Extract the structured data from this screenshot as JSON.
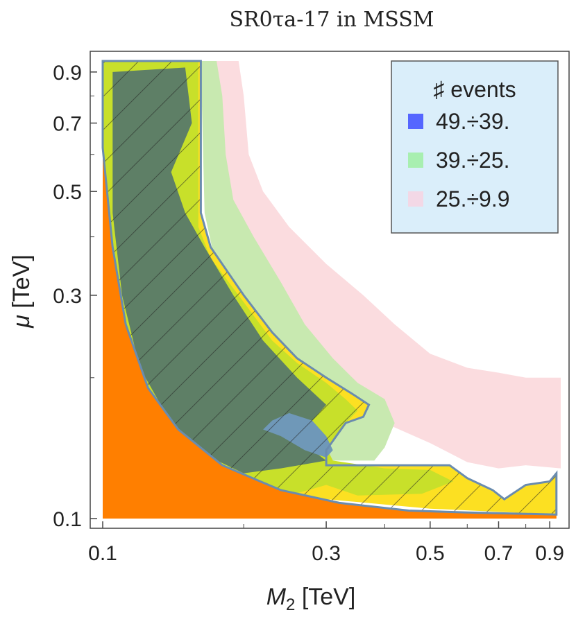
{
  "chart_data": {
    "type": "contour",
    "title": "SR0τa-17 in MSSM",
    "xlabel": {
      "symbol": "M",
      "sub": "2",
      "unit": " [TeV]"
    },
    "ylabel": {
      "symbol": "μ",
      "unit": " [TeV]"
    },
    "x_scale": "log",
    "y_scale": "log",
    "xlim": [
      0.1,
      0.95
    ],
    "ylim": [
      0.1,
      0.95
    ],
    "x_ticks": [
      {
        "value": 0.1,
        "label": "0.1"
      },
      {
        "value": 0.3,
        "label": "0.3"
      },
      {
        "value": 0.5,
        "label": "0.5"
      },
      {
        "value": 0.7,
        "label": "0.7"
      },
      {
        "value": 0.9,
        "label": "0.9"
      }
    ],
    "y_ticks": [
      {
        "value": 0.1,
        "label": "0.1"
      },
      {
        "value": 0.3,
        "label": "0.3"
      },
      {
        "value": 0.5,
        "label": "0.5"
      },
      {
        "value": 0.7,
        "label": "0.7"
      },
      {
        "value": 0.9,
        "label": "0.9"
      }
    ],
    "legend": {
      "title": "♯ events",
      "position": "top-right",
      "entries": [
        {
          "label": "49.÷39.",
          "color": "#5566ff"
        },
        {
          "label": "39.÷25.",
          "color": "#a8efb0"
        },
        {
          "label": "25.÷9.9",
          "color": "#f3d8e6"
        }
      ]
    },
    "colors": {
      "pink_band": "#fbdcdf",
      "light_green_band": "#c8e9b0",
      "yellow_band": "#fce022",
      "lime_band": "#c8e02a",
      "dark_region": "#5e7f66",
      "blue_region": "#6f98b8",
      "excluded_region": "#ff7f00",
      "contour_line": "#6a8caf"
    },
    "regions": {
      "pink": [
        [
          0.162,
          0.95
        ],
        [
          0.195,
          0.95
        ],
        [
          0.2,
          0.8
        ],
        [
          0.205,
          0.6
        ],
        [
          0.22,
          0.5
        ],
        [
          0.25,
          0.42
        ],
        [
          0.3,
          0.35
        ],
        [
          0.36,
          0.3
        ],
        [
          0.42,
          0.26
        ],
        [
          0.5,
          0.225
        ],
        [
          0.6,
          0.21
        ],
        [
          0.7,
          0.205
        ],
        [
          0.8,
          0.2
        ],
        [
          0.95,
          0.2
        ],
        [
          0.95,
          0.128
        ],
        [
          0.8,
          0.13
        ],
        [
          0.7,
          0.128
        ],
        [
          0.6,
          0.132
        ],
        [
          0.5,
          0.145
        ],
        [
          0.4,
          0.16
        ],
        [
          0.3,
          0.17
        ],
        [
          0.25,
          0.18
        ],
        [
          0.2,
          0.25
        ],
        [
          0.18,
          0.35
        ],
        [
          0.165,
          0.55
        ]
      ],
      "light_green": [
        [
          0.162,
          0.95
        ],
        [
          0.175,
          0.95
        ],
        [
          0.18,
          0.8
        ],
        [
          0.183,
          0.6
        ],
        [
          0.19,
          0.48
        ],
        [
          0.21,
          0.4
        ],
        [
          0.24,
          0.32
        ],
        [
          0.27,
          0.26
        ],
        [
          0.31,
          0.22
        ],
        [
          0.35,
          0.195
        ],
        [
          0.4,
          0.18
        ],
        [
          0.42,
          0.16
        ],
        [
          0.4,
          0.142
        ],
        [
          0.38,
          0.133
        ],
        [
          0.3,
          0.133
        ],
        [
          0.25,
          0.14
        ],
        [
          0.22,
          0.17
        ],
        [
          0.2,
          0.22
        ],
        [
          0.18,
          0.3
        ],
        [
          0.165,
          0.45
        ]
      ],
      "yellow": [
        [
          0.1,
          0.95
        ],
        [
          0.162,
          0.95
        ],
        [
          0.162,
          0.45
        ],
        [
          0.17,
          0.38
        ],
        [
          0.2,
          0.3
        ],
        [
          0.23,
          0.25
        ],
        [
          0.26,
          0.22
        ],
        [
          0.3,
          0.2
        ],
        [
          0.34,
          0.185
        ],
        [
          0.37,
          0.175
        ],
        [
          0.36,
          0.165
        ],
        [
          0.33,
          0.16
        ],
        [
          0.3,
          0.14
        ],
        [
          0.3,
          0.13
        ],
        [
          0.48,
          0.13
        ],
        [
          0.55,
          0.13
        ],
        [
          0.6,
          0.122
        ],
        [
          0.68,
          0.115
        ],
        [
          0.72,
          0.11
        ],
        [
          0.8,
          0.118
        ],
        [
          0.9,
          0.12
        ],
        [
          0.93,
          0.125
        ],
        [
          0.93,
          0.102
        ],
        [
          0.5,
          0.105
        ],
        [
          0.3,
          0.11
        ],
        [
          0.2,
          0.118
        ],
        [
          0.15,
          0.14
        ],
        [
          0.12,
          0.19
        ],
        [
          0.105,
          0.35
        ],
        [
          0.1,
          0.55
        ]
      ],
      "lime": [
        [
          0.1,
          0.95
        ],
        [
          0.16,
          0.95
        ],
        [
          0.16,
          0.42
        ],
        [
          0.17,
          0.36
        ],
        [
          0.2,
          0.29
        ],
        [
          0.23,
          0.24
        ],
        [
          0.26,
          0.215
        ],
        [
          0.3,
          0.195
        ],
        [
          0.33,
          0.18
        ],
        [
          0.35,
          0.17
        ],
        [
          0.33,
          0.16
        ],
        [
          0.3,
          0.142
        ],
        [
          0.31,
          0.133
        ],
        [
          0.4,
          0.128
        ],
        [
          0.5,
          0.127
        ],
        [
          0.56,
          0.12
        ],
        [
          0.48,
          0.113
        ],
        [
          0.35,
          0.112
        ],
        [
          0.3,
          0.118
        ],
        [
          0.25,
          0.112
        ],
        [
          0.2,
          0.117
        ],
        [
          0.15,
          0.138
        ],
        [
          0.12,
          0.19
        ],
        [
          0.105,
          0.35
        ],
        [
          0.1,
          0.6
        ]
      ],
      "dark": [
        [
          0.105,
          0.9
        ],
        [
          0.15,
          0.92
        ],
        [
          0.155,
          0.7
        ],
        [
          0.14,
          0.55
        ],
        [
          0.15,
          0.45
        ],
        [
          0.165,
          0.38
        ],
        [
          0.19,
          0.3
        ],
        [
          0.22,
          0.24
        ],
        [
          0.26,
          0.2
        ],
        [
          0.3,
          0.175
        ],
        [
          0.28,
          0.162
        ],
        [
          0.26,
          0.15
        ],
        [
          0.28,
          0.14
        ],
        [
          0.3,
          0.133
        ],
        [
          0.24,
          0.128
        ],
        [
          0.2,
          0.125
        ],
        [
          0.17,
          0.135
        ],
        [
          0.14,
          0.16
        ],
        [
          0.12,
          0.21
        ],
        [
          0.11,
          0.3
        ],
        [
          0.105,
          0.45
        ]
      ],
      "blue_patch": [
        [
          0.23,
          0.162
        ],
        [
          0.25,
          0.168
        ],
        [
          0.28,
          0.162
        ],
        [
          0.3,
          0.15
        ],
        [
          0.31,
          0.14
        ],
        [
          0.3,
          0.135
        ],
        [
          0.27,
          0.14
        ],
        [
          0.24,
          0.15
        ],
        [
          0.22,
          0.155
        ]
      ],
      "excluded_orange": [
        [
          0.1,
          0.1
        ],
        [
          0.1,
          0.62
        ],
        [
          0.105,
          0.38
        ],
        [
          0.112,
          0.26
        ],
        [
          0.125,
          0.19
        ],
        [
          0.145,
          0.155
        ],
        [
          0.18,
          0.13
        ],
        [
          0.24,
          0.115
        ],
        [
          0.32,
          0.108
        ],
        [
          0.45,
          0.104
        ],
        [
          0.6,
          0.103
        ],
        [
          0.93,
          0.102
        ],
        [
          0.93,
          0.1
        ]
      ],
      "contour_outline": [
        [
          0.1,
          0.62
        ],
        [
          0.1,
          0.95
        ],
        [
          0.162,
          0.95
        ],
        [
          0.162,
          0.45
        ],
        [
          0.17,
          0.38
        ],
        [
          0.2,
          0.3
        ],
        [
          0.23,
          0.25
        ],
        [
          0.26,
          0.22
        ],
        [
          0.3,
          0.2
        ],
        [
          0.34,
          0.185
        ],
        [
          0.37,
          0.175
        ],
        [
          0.36,
          0.165
        ],
        [
          0.33,
          0.16
        ],
        [
          0.3,
          0.14
        ],
        [
          0.3,
          0.13
        ],
        [
          0.48,
          0.13
        ],
        [
          0.55,
          0.13
        ],
        [
          0.6,
          0.122
        ],
        [
          0.68,
          0.115
        ],
        [
          0.72,
          0.11
        ],
        [
          0.8,
          0.118
        ],
        [
          0.9,
          0.12
        ],
        [
          0.93,
          0.125
        ],
        [
          0.93,
          0.102
        ],
        [
          0.6,
          0.103
        ],
        [
          0.45,
          0.104
        ],
        [
          0.32,
          0.108
        ],
        [
          0.24,
          0.115
        ],
        [
          0.18,
          0.13
        ],
        [
          0.145,
          0.155
        ],
        [
          0.125,
          0.19
        ],
        [
          0.112,
          0.26
        ],
        [
          0.105,
          0.38
        ],
        [
          0.1,
          0.62
        ]
      ]
    }
  }
}
